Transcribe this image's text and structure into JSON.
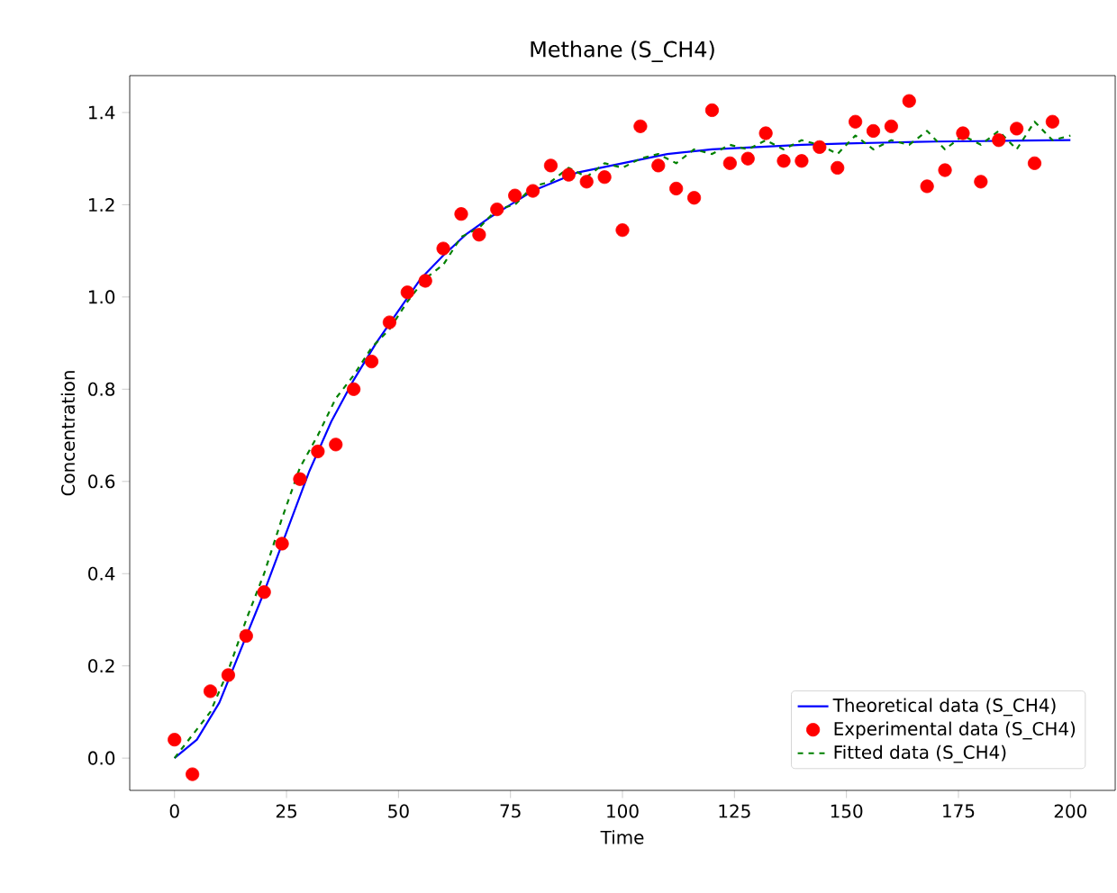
{
  "chart_data": {
    "type": "line",
    "title": "Methane (S_CH4)",
    "xlabel": "Time",
    "ylabel": "Concentration",
    "xlim": [
      -10,
      210
    ],
    "ylim": [
      -0.07,
      1.48
    ],
    "xticks": [
      0,
      25,
      50,
      75,
      100,
      125,
      150,
      175,
      200
    ],
    "yticks": [
      {
        "value": 0,
        "label": "0.0"
      },
      {
        "value": 0.2,
        "label": "0.2"
      },
      {
        "value": 0.4,
        "label": "0.4"
      },
      {
        "value": 0.6,
        "label": "0.6"
      },
      {
        "value": 0.8,
        "label": "0.8"
      },
      {
        "value": 1.0,
        "label": "1.0"
      },
      {
        "value": 1.2,
        "label": "1.2"
      },
      {
        "value": 1.4,
        "label": "1.4"
      }
    ],
    "grid": false,
    "legend": "bottom right",
    "series": [
      {
        "name": "Theoretical data (S_CH4)",
        "color": "#0000ff",
        "line_style": "solid",
        "marker": "none",
        "x": [
          0,
          5,
          10,
          15,
          20,
          25,
          30,
          35,
          40,
          45,
          50,
          55,
          60,
          65,
          70,
          75,
          80,
          90,
          100,
          110,
          120,
          130,
          140,
          150,
          160,
          170,
          180,
          190,
          200
        ],
        "values": [
          0,
          0.04,
          0.12,
          0.24,
          0.36,
          0.49,
          0.62,
          0.73,
          0.82,
          0.9,
          0.97,
          1.04,
          1.09,
          1.135,
          1.17,
          1.2,
          1.23,
          1.27,
          1.29,
          1.31,
          1.32,
          1.325,
          1.33,
          1.333,
          1.335,
          1.337,
          1.338,
          1.339,
          1.34
        ]
      },
      {
        "name": "Experimental data (S_CH4)",
        "type": "scatter",
        "color": "#ff0000",
        "marker": "circle",
        "x": [
          0,
          4,
          8,
          12,
          16,
          20,
          24,
          28,
          32,
          36,
          40,
          44,
          48,
          52,
          56,
          60,
          64,
          68,
          72,
          76,
          80,
          84,
          88,
          92,
          96,
          100,
          104,
          108,
          112,
          116,
          120,
          124,
          128,
          132,
          136,
          140,
          144,
          148,
          152,
          156,
          160,
          164,
          168,
          172,
          176,
          180,
          184,
          188,
          192,
          196
        ],
        "values": [
          0.04,
          -0.035,
          0.145,
          0.18,
          0.265,
          0.36,
          0.465,
          0.605,
          0.665,
          0.68,
          0.8,
          0.86,
          0.945,
          1.01,
          1.035,
          1.105,
          1.18,
          1.135,
          1.19,
          1.22,
          1.23,
          1.285,
          1.265,
          1.25,
          1.26,
          1.145,
          1.37,
          1.285,
          1.235,
          1.215,
          1.405,
          1.29,
          1.3,
          1.355,
          1.295,
          1.295,
          1.325,
          1.28,
          1.38,
          1.36,
          1.37,
          1.425,
          1.24,
          1.275,
          1.355,
          1.25,
          1.34,
          1.365,
          1.29,
          1.38
        ]
      },
      {
        "name": "Fitted data (S_CH4)",
        "color": "#008000",
        "line_style": "dashed",
        "marker": "none",
        "x": [
          0,
          4,
          8,
          12,
          16,
          20,
          24,
          28,
          32,
          36,
          40,
          44,
          48,
          52,
          56,
          60,
          64,
          68,
          72,
          76,
          80,
          84,
          88,
          92,
          96,
          100,
          104,
          108,
          112,
          116,
          120,
          124,
          128,
          132,
          136,
          140,
          144,
          148,
          152,
          156,
          160,
          164,
          168,
          172,
          176,
          180,
          184,
          188,
          192,
          196,
          200
        ],
        "values": [
          0,
          0.05,
          0.1,
          0.19,
          0.3,
          0.4,
          0.52,
          0.63,
          0.7,
          0.78,
          0.83,
          0.89,
          0.93,
          0.99,
          1.04,
          1.07,
          1.13,
          1.15,
          1.19,
          1.2,
          1.24,
          1.25,
          1.28,
          1.26,
          1.29,
          1.28,
          1.3,
          1.31,
          1.29,
          1.32,
          1.31,
          1.33,
          1.32,
          1.34,
          1.32,
          1.34,
          1.33,
          1.31,
          1.35,
          1.32,
          1.34,
          1.33,
          1.36,
          1.32,
          1.35,
          1.33,
          1.36,
          1.32,
          1.38,
          1.34,
          1.35
        ]
      }
    ]
  }
}
